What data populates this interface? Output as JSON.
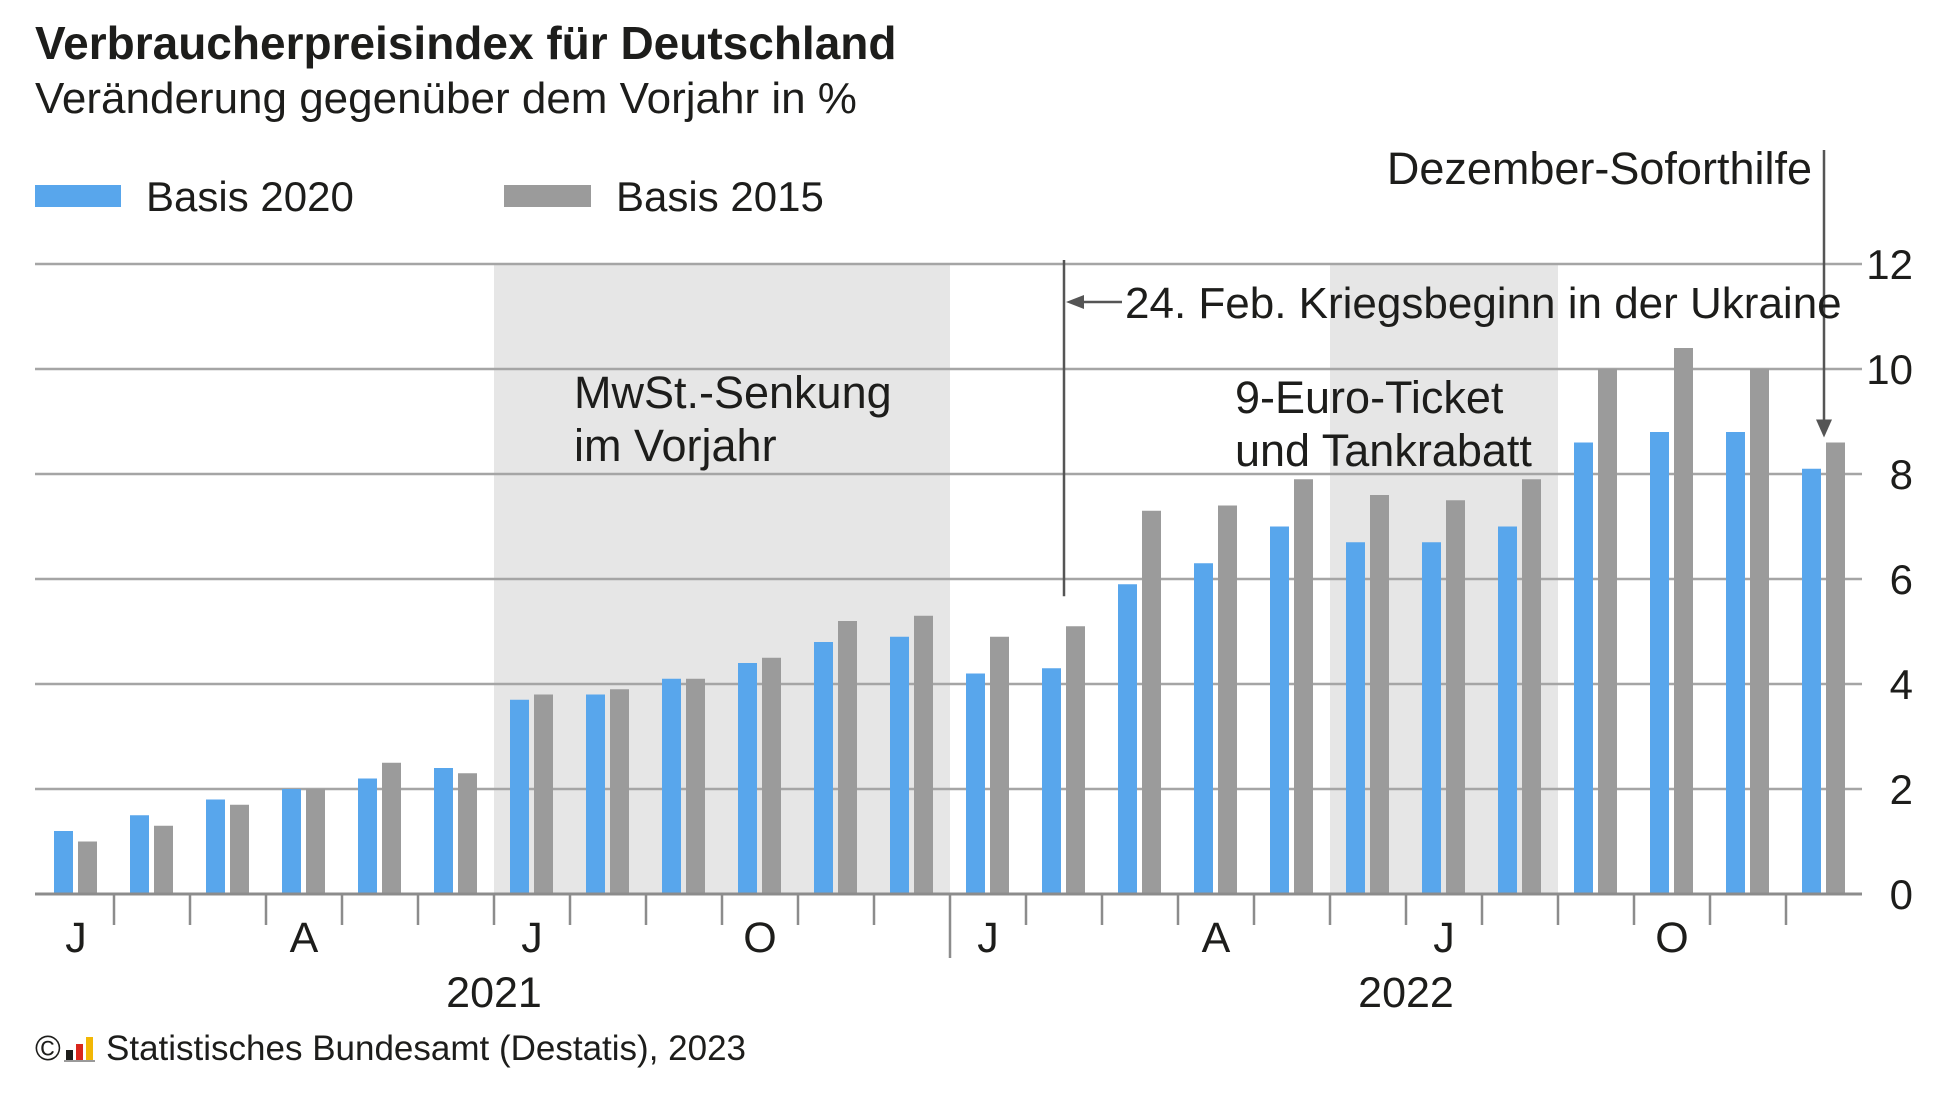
{
  "chart_data": {
    "type": "bar",
    "title": "Verbraucherpreisindex für Deutschland",
    "subtitle": "Veränderung gegenüber dem Vorjahr in %",
    "x": [
      "2021-01",
      "2021-02",
      "2021-03",
      "2021-04",
      "2021-05",
      "2021-06",
      "2021-07",
      "2021-08",
      "2021-09",
      "2021-10",
      "2021-11",
      "2021-12",
      "2022-01",
      "2022-02",
      "2022-03",
      "2022-04",
      "2022-05",
      "2022-06",
      "2022-07",
      "2022-08",
      "2022-09",
      "2022-10",
      "2022-11",
      "2022-12"
    ],
    "series": [
      {
        "name": "Basis 2020",
        "color": "#58a6ec",
        "values": [
          1.2,
          1.5,
          1.8,
          2.0,
          2.2,
          2.4,
          3.7,
          3.8,
          4.1,
          4.4,
          4.8,
          4.9,
          4.2,
          4.3,
          5.9,
          6.3,
          7.0,
          6.7,
          6.7,
          7.0,
          8.6,
          8.8,
          8.8,
          8.1
        ]
      },
      {
        "name": "Basis 2015",
        "color": "#9b9b9b",
        "values": [
          1.0,
          1.3,
          1.7,
          2.0,
          2.5,
          2.3,
          3.8,
          3.9,
          4.1,
          4.5,
          5.2,
          5.3,
          4.9,
          5.1,
          7.3,
          7.4,
          7.9,
          7.6,
          7.5,
          7.9,
          10.0,
          10.4,
          10.0,
          8.6
        ]
      }
    ],
    "legend_placement": "top-left",
    "y_axis_position": "right",
    "ylim": [
      0,
      12
    ],
    "yticks": [
      0,
      2,
      4,
      6,
      8,
      10,
      12
    ],
    "grid": true,
    "xtick_labels": [
      {
        "x": "2021-01",
        "label": "J"
      },
      {
        "x": "2021-04",
        "label": "A"
      },
      {
        "x": "2021-07",
        "label": "J"
      },
      {
        "x": "2021-10",
        "label": "O"
      },
      {
        "x": "2022-01",
        "label": "J"
      },
      {
        "x": "2022-04",
        "label": "A"
      },
      {
        "x": "2022-07",
        "label": "J"
      },
      {
        "x": "2022-10",
        "label": "O"
      }
    ],
    "year_labels": [
      "2021",
      "2022"
    ],
    "shaded_periods": [
      {
        "from": "2021-07",
        "to": "2021-12",
        "label": [
          "MwSt.-Senkung",
          "im Vorjahr"
        ]
      },
      {
        "from": "2022-06",
        "to": "2022-08",
        "label": [
          "9-Euro-Ticket",
          "und Tankrabatt"
        ]
      }
    ],
    "event_lines": [
      {
        "x": "2022-02",
        "label": "24. Feb. Kriegsbeginn in der Ukraine"
      }
    ],
    "arrows": [
      {
        "x": "2022-12",
        "label": "Dezember-Soforthilfe"
      }
    ],
    "colors": {
      "shading": "#e6e6e6",
      "grid": "#a5a5a5",
      "axis": "#8c8c8c",
      "annotation": "#555555",
      "text": "#1d1d1b"
    }
  },
  "footer": {
    "copyright": "©",
    "source": "Statistisches Bundesamt (Destatis), 2023",
    "logo_icon": "destatis-logo-icon",
    "logo_colors": [
      "#1d1d1b",
      "#d9261c",
      "#f2b705"
    ]
  }
}
